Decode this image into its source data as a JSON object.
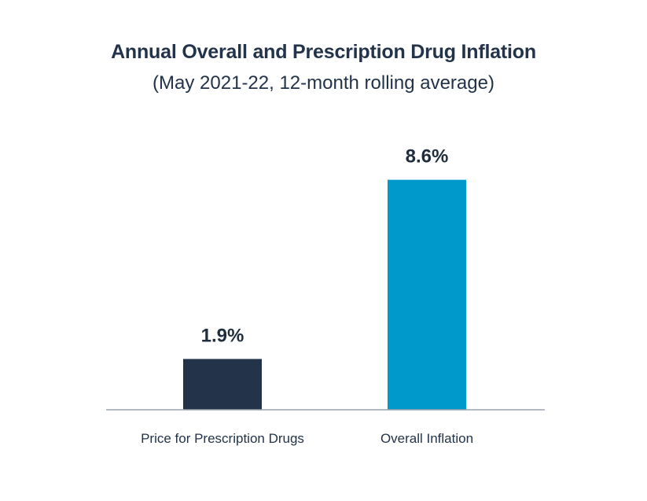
{
  "chart_data": {
    "type": "bar",
    "title": "Annual Overall and Prescription Drug Inflation",
    "subtitle": "(May 2021-22, 12-month rolling average)",
    "categories": [
      "Price for Prescription Drugs",
      "Overall Inflation"
    ],
    "values": [
      1.9,
      8.6
    ],
    "value_labels": [
      "1.9%",
      "8.6%"
    ],
    "colors": [
      "#22334a",
      "#0099cc"
    ],
    "ylim": [
      0,
      10
    ],
    "grid": false,
    "legend": "none"
  }
}
